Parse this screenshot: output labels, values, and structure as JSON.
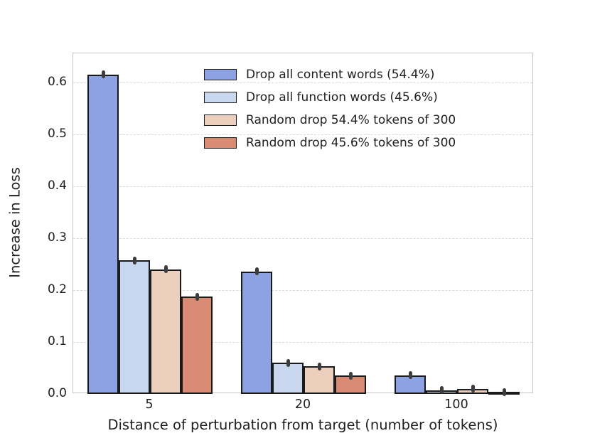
{
  "chart_data": {
    "type": "bar",
    "title": "",
    "xlabel": "Distance of perturbation from target (number of tokens)",
    "ylabel": "Increase in Loss",
    "categories": [
      "5",
      "20",
      "100"
    ],
    "series": [
      {
        "name": "Drop all content words (54.4%)",
        "color": "#8CA2E3",
        "values": [
          0.615,
          0.236,
          0.036
        ]
      },
      {
        "name": "Drop all function words (45.6%)",
        "color": "#C9D7EE",
        "values": [
          0.257,
          0.06,
          0.007
        ]
      },
      {
        "name": "Random drop 54.4% tokens of 300",
        "color": "#ECCFBC",
        "values": [
          0.24,
          0.053,
          0.01
        ]
      },
      {
        "name": "Random drop 45.6% tokens of 300",
        "color": "#D98A72",
        "values": [
          0.187,
          0.035,
          0.004
        ]
      }
    ],
    "ytick_labels": [
      "0.0",
      "0.1",
      "0.2",
      "0.3",
      "0.4",
      "0.5",
      "0.6"
    ],
    "ytick_values": [
      0.0,
      0.1,
      0.2,
      0.3,
      0.4,
      0.5,
      0.6
    ],
    "ylim": [
      0,
      0.656
    ],
    "grid": true,
    "legend_position": "upper center, frameless",
    "bar_edge_color": "#1a1a1a",
    "error_marker_color": "#3d3d3d",
    "gridline_color": "#d9d9d9"
  }
}
